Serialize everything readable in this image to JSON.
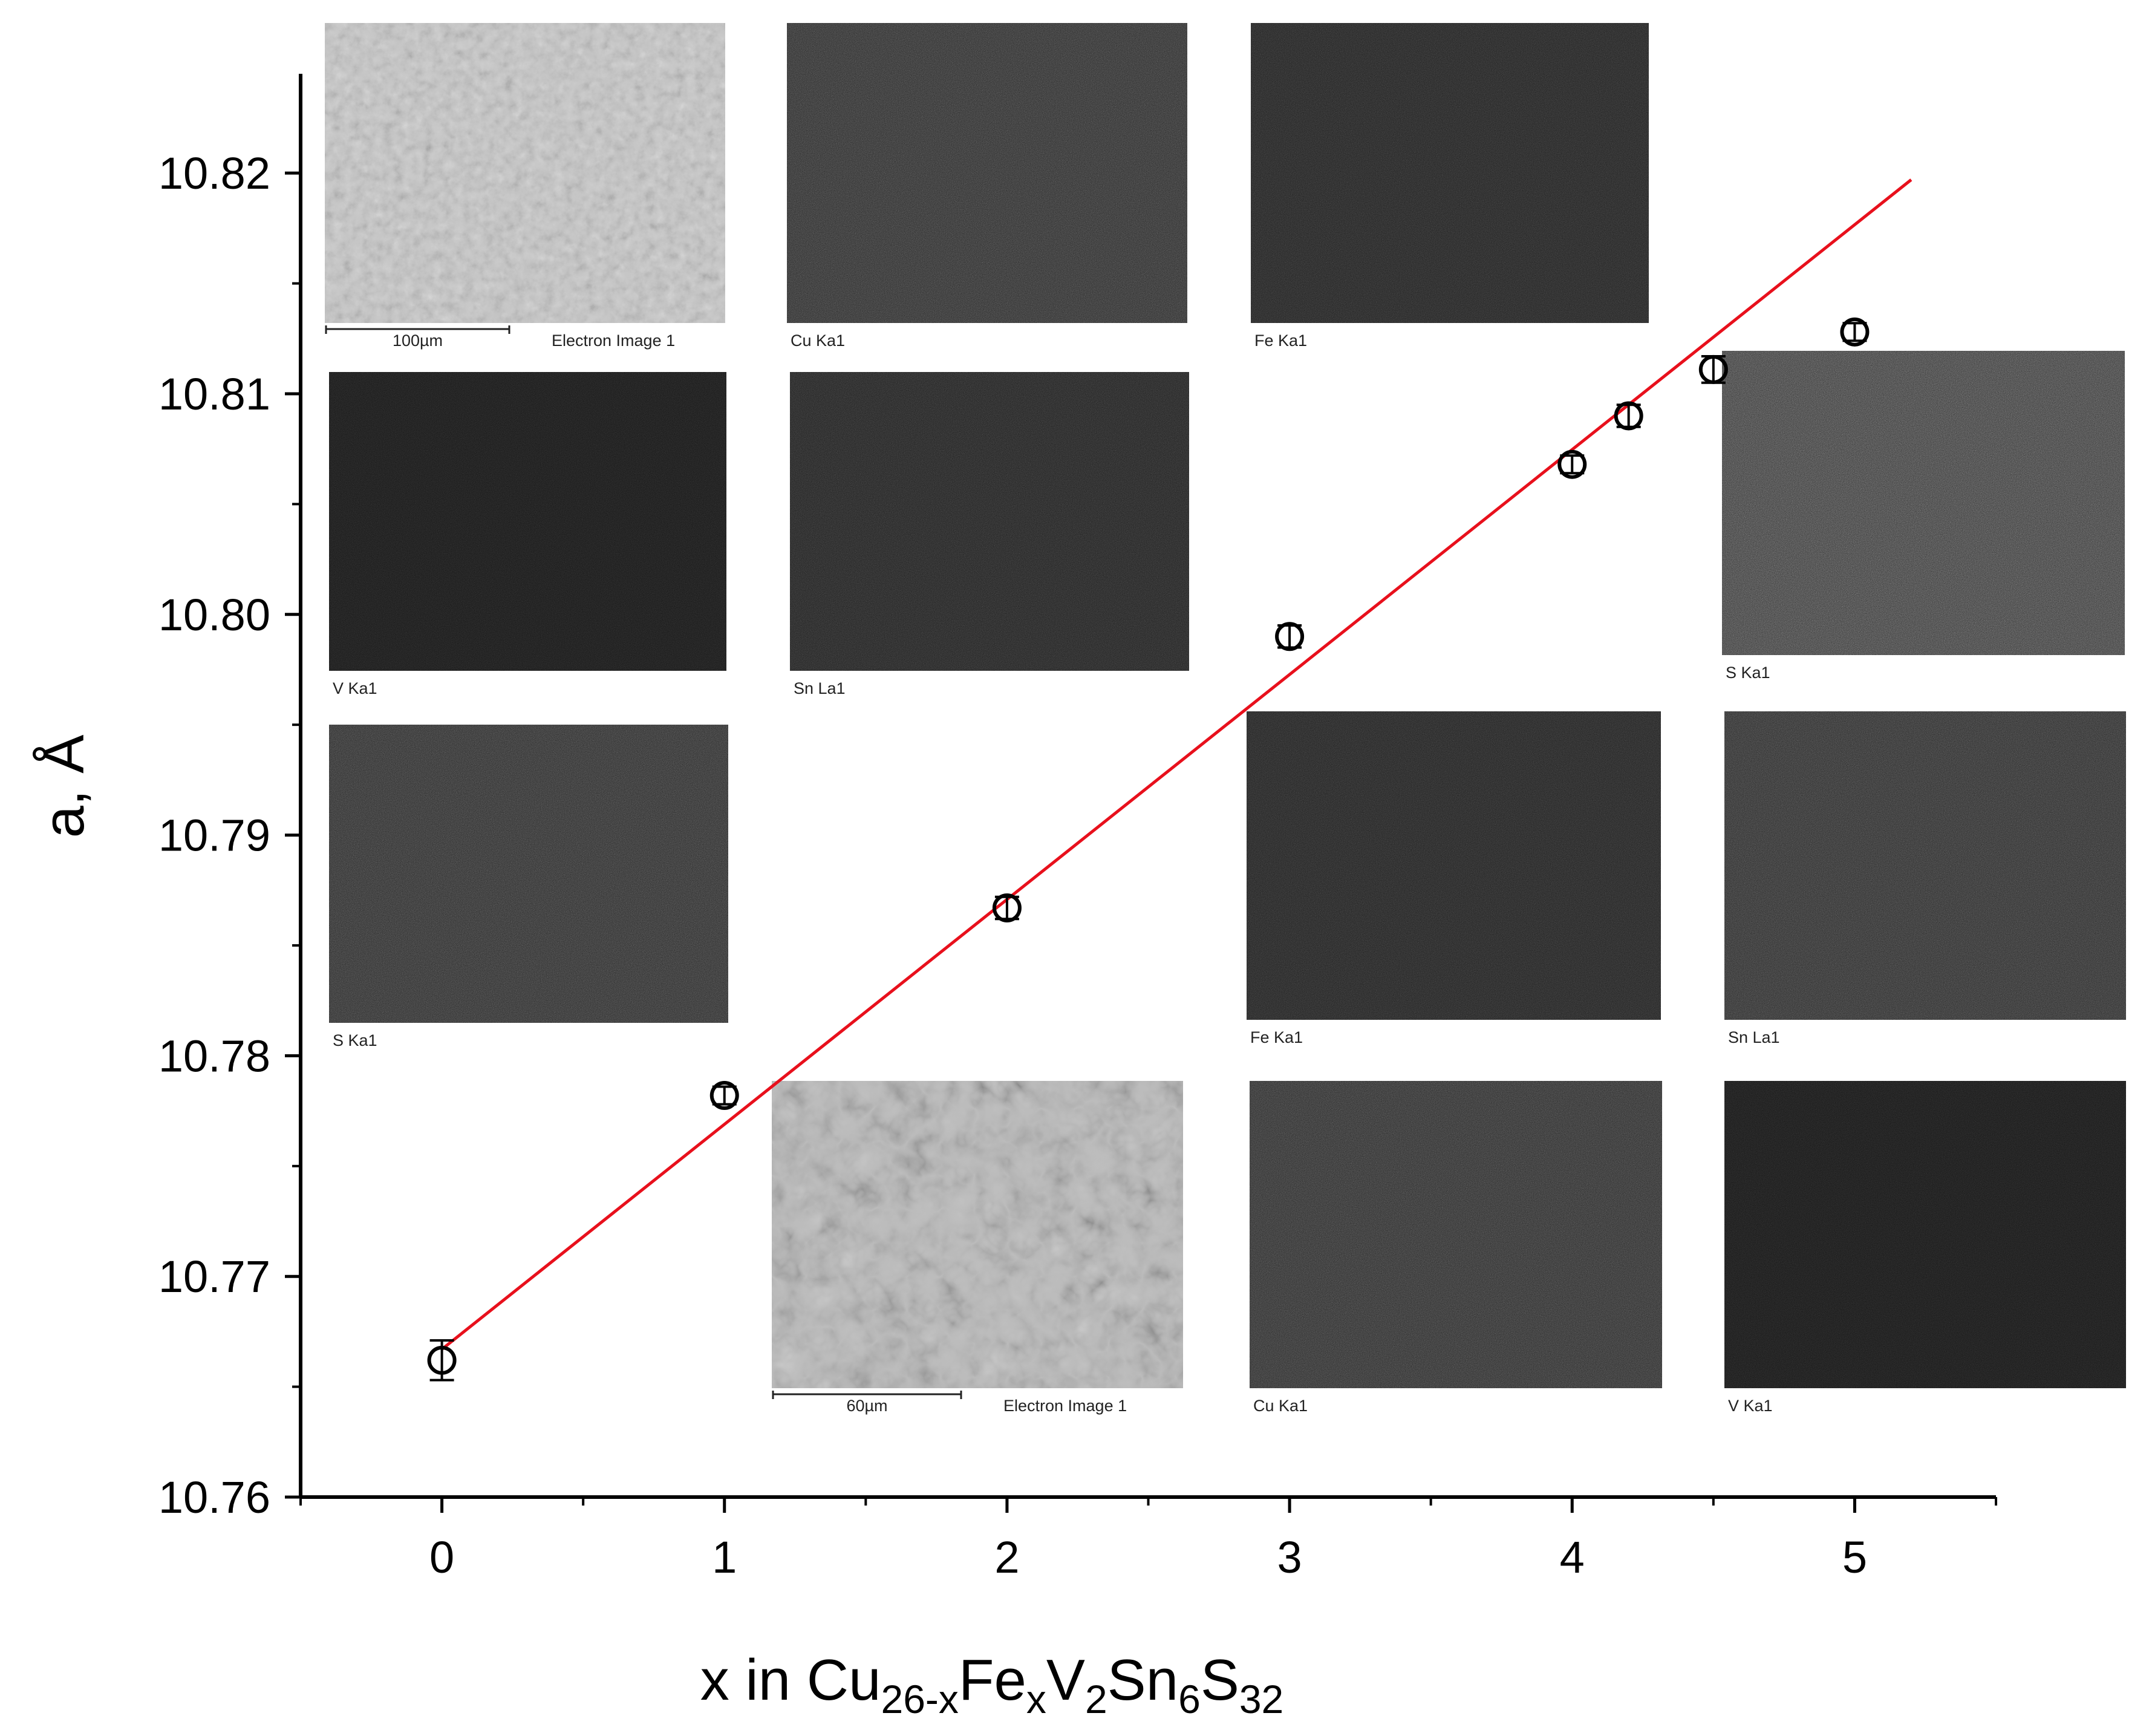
{
  "chart_data": {
    "type": "scatter",
    "xlabel": {
      "prefix": "x in Cu",
      "parts": [
        {
          "text": "26-x",
          "sub": true
        },
        {
          "text": "Fe",
          "sub": false
        },
        {
          "text": "x",
          "sub": true
        },
        {
          "text": "V",
          "sub": false
        },
        {
          "text": "2",
          "sub": true
        },
        {
          "text": "Sn",
          "sub": false
        },
        {
          "text": "6",
          "sub": true
        },
        {
          "text": "S",
          "sub": false
        },
        {
          "text": "32",
          "sub": true
        }
      ]
    },
    "ylabel": "a, Å",
    "xlim": [
      -0.5,
      5.5
    ],
    "ylim": [
      10.76,
      10.8245
    ],
    "x_ticks": [
      0,
      1,
      2,
      3,
      4,
      5
    ],
    "x_tick_labels": [
      "0",
      "1",
      "2",
      "3",
      "4",
      "5"
    ],
    "y_ticks": [
      10.76,
      10.77,
      10.78,
      10.79,
      10.8,
      10.81,
      10.82
    ],
    "y_tick_labels": [
      "10.76",
      "10.77",
      "10.78",
      "10.79",
      "10.80",
      "10.81",
      "10.82"
    ],
    "grid": false,
    "legend": "none",
    "series": [
      {
        "marker": "open-circle",
        "color": "#000000",
        "x": [
          0,
          1,
          2,
          3,
          4,
          4.2,
          4.5,
          5
        ],
        "y": [
          10.7662,
          10.7782,
          10.7867,
          10.799,
          10.8068,
          10.809,
          10.8111,
          10.8128
        ],
        "error": [
          0.0009,
          0.0004,
          0.0005,
          0.0005,
          0.0004,
          0.0005,
          0.0006,
          0.0004
        ]
      }
    ],
    "fit_line": {
      "color": "#e8101c",
      "x": [
        0,
        5.2
      ],
      "y": [
        10.7667,
        10.8197
      ]
    },
    "insets": [
      {
        "caption": "Electron Image 1",
        "scale_bar": "100µm",
        "tone": "sem-fine"
      },
      {
        "caption": "Cu Ka1",
        "tone": "map-mid"
      },
      {
        "caption": "Fe Ka1",
        "tone": "map-dark"
      },
      {
        "caption": "V Ka1",
        "tone": "map-darkest"
      },
      {
        "caption": "Sn La1",
        "tone": "map-dark"
      },
      {
        "caption": "S Ka1",
        "tone": "map-bright"
      },
      {
        "caption": "S Ka1",
        "tone": "map-mid"
      },
      {
        "caption": "Fe Ka1",
        "tone": "map-dark"
      },
      {
        "caption": "Sn La1",
        "tone": "map-mid"
      },
      {
        "caption": "Electron Image 1",
        "scale_bar": "60µm",
        "tone": "sem-coarse"
      },
      {
        "caption": "Cu Ka1",
        "tone": "map-mid"
      },
      {
        "caption": "V Ka1",
        "tone": "map-darkest"
      }
    ]
  }
}
